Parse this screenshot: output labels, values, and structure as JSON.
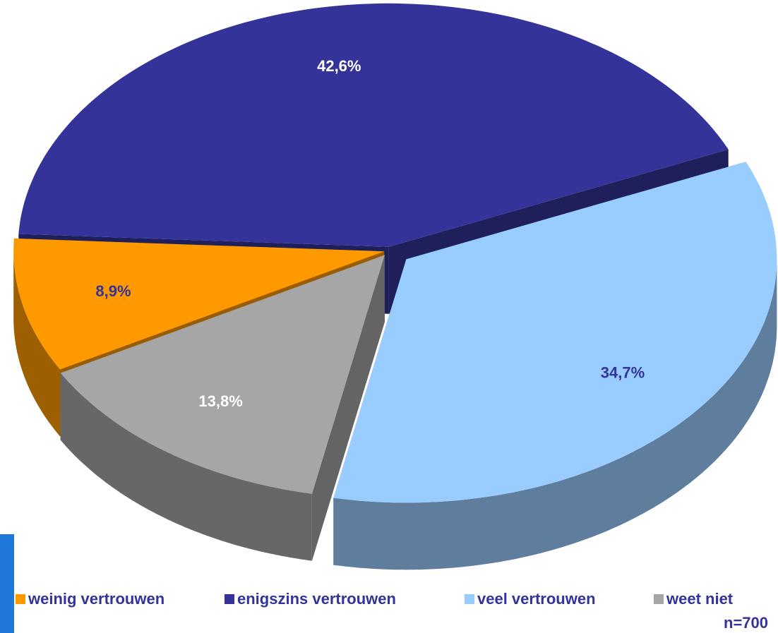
{
  "chart_data": {
    "type": "pie",
    "categories": [
      "weinig vertrouwen",
      "enigszins vertrouwen",
      "veel vertrouwen",
      "weet niet"
    ],
    "values": [
      8.9,
      42.6,
      34.7,
      13.8
    ],
    "value_labels": [
      "8,9%",
      "42,6%",
      "34,7%",
      "13,8%"
    ],
    "colors": [
      "#ff9900",
      "#333399",
      "#99ccff",
      "#a6a6a6"
    ],
    "label_colors": [
      "#333399",
      "#ffffff",
      "#333399",
      "#ffffff"
    ],
    "legend": "bottom",
    "note": "n=700"
  }
}
